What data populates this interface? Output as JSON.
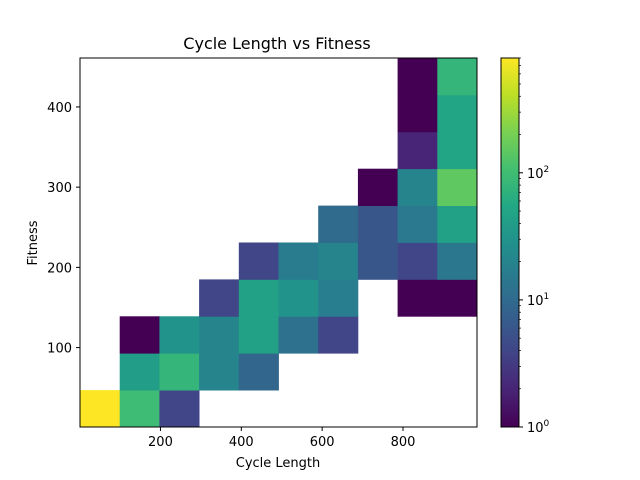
{
  "chart_data": {
    "type": "heatmap",
    "title": "Cycle Length vs Fitness",
    "xlabel": "Cycle Length",
    "ylabel": "Fitness",
    "xlim": [
      1,
      983
    ],
    "ylim": [
      1,
      461
    ],
    "x_edges": [
      1,
      99.2,
      197.4,
      295.6,
      393.8,
      492,
      590.2,
      688.4,
      786.6,
      884.8,
      983
    ],
    "y_edges": [
      1,
      47,
      93,
      139,
      185,
      231,
      277,
      323,
      369,
      415,
      461
    ],
    "x_ticks": [
      200,
      400,
      600,
      800
    ],
    "y_ticks": [
      100,
      200,
      300,
      400
    ],
    "colorbar": {
      "scale": "log",
      "range": [
        1,
        800
      ],
      "tick_values": [
        1,
        10,
        100
      ],
      "tick_labels": [
        "10",
        "10",
        "10"
      ],
      "tick_exponents": [
        "0",
        "1",
        "2"
      ],
      "colormap": "viridis"
    },
    "cells": [
      {
        "col": 0,
        "row": 0,
        "value": 800
      },
      {
        "col": 1,
        "row": 0,
        "value": 95
      },
      {
        "col": 2,
        "row": 0,
        "value": 4
      },
      {
        "col": 1,
        "row": 1,
        "value": 40
      },
      {
        "col": 2,
        "row": 1,
        "value": 80
      },
      {
        "col": 3,
        "row": 1,
        "value": 20
      },
      {
        "col": 4,
        "row": 1,
        "value": 9
      },
      {
        "col": 1,
        "row": 2,
        "value": 1
      },
      {
        "col": 2,
        "row": 2,
        "value": 30
      },
      {
        "col": 3,
        "row": 2,
        "value": 20
      },
      {
        "col": 4,
        "row": 2,
        "value": 45
      },
      {
        "col": 5,
        "row": 2,
        "value": 12
      },
      {
        "col": 6,
        "row": 2,
        "value": 4
      },
      {
        "col": 3,
        "row": 3,
        "value": 4
      },
      {
        "col": 4,
        "row": 3,
        "value": 45
      },
      {
        "col": 5,
        "row": 3,
        "value": 30
      },
      {
        "col": 6,
        "row": 3,
        "value": 17
      },
      {
        "col": 8,
        "row": 3,
        "value": 1
      },
      {
        "col": 9,
        "row": 3,
        "value": 1
      },
      {
        "col": 4,
        "row": 4,
        "value": 4
      },
      {
        "col": 5,
        "row": 4,
        "value": 16
      },
      {
        "col": 6,
        "row": 4,
        "value": 20
      },
      {
        "col": 7,
        "row": 4,
        "value": 6
      },
      {
        "col": 8,
        "row": 4,
        "value": 4
      },
      {
        "col": 9,
        "row": 4,
        "value": 14
      },
      {
        "col": 6,
        "row": 5,
        "value": 10
      },
      {
        "col": 7,
        "row": 5,
        "value": 6
      },
      {
        "col": 8,
        "row": 5,
        "value": 15
      },
      {
        "col": 9,
        "row": 5,
        "value": 45
      },
      {
        "col": 7,
        "row": 6,
        "value": 1
      },
      {
        "col": 8,
        "row": 6,
        "value": 20
      },
      {
        "col": 9,
        "row": 6,
        "value": 150
      },
      {
        "col": 8,
        "row": 7,
        "value": 2
      },
      {
        "col": 9,
        "row": 7,
        "value": 50
      },
      {
        "col": 8,
        "row": 8,
        "value": 1
      },
      {
        "col": 9,
        "row": 8,
        "value": 50
      },
      {
        "col": 8,
        "row": 9,
        "value": 1
      },
      {
        "col": 9,
        "row": 9,
        "value": 80
      }
    ]
  }
}
